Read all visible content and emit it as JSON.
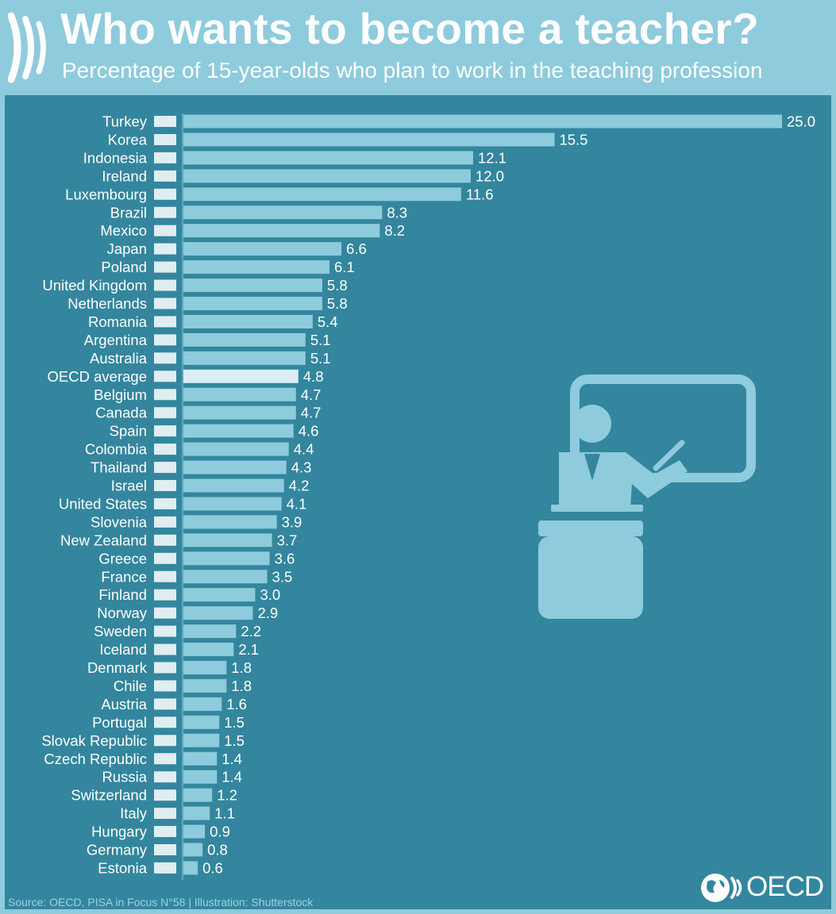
{
  "header": {
    "title": "Who wants to become a teacher?",
    "subtitle": "Percentage of 15-year-olds who plan to work in the teaching profession"
  },
  "footer": {
    "source": "Source: OECD, PISA in Focus N°58 | Illustration: Shutterstock",
    "logo_text": "OECD"
  },
  "colors": {
    "header_bg": "#8ecbdc",
    "panel_bg": "#33869e",
    "bar": "#8ecbdc",
    "highlight_bar": "#daeef4",
    "text": "#ffffff"
  },
  "chart_data": {
    "type": "bar",
    "orientation": "horizontal",
    "title": "Who wants to become a teacher?",
    "subtitle": "Percentage of 15-year-olds who plan to work in the teaching profession",
    "categories": [
      "Turkey",
      "Korea",
      "Indonesia",
      "Ireland",
      "Luxembourg",
      "Brazil",
      "Mexico",
      "Japan",
      "Poland",
      "United Kingdom",
      "Netherlands",
      "Romania",
      "Argentina",
      "Australia",
      "OECD average",
      "Belgium",
      "Canada",
      "Spain",
      "Colombia",
      "Thailand",
      "Israel",
      "United States",
      "Slovenia",
      "New Zealand",
      "Greece",
      "France",
      "Finland",
      "Norway",
      "Sweden",
      "Iceland",
      "Denmark",
      "Chile",
      "Austria",
      "Portugal",
      "Slovak Republic",
      "Czech Republic",
      "Russia",
      "Switzerland",
      "Italy",
      "Hungary",
      "Germany",
      "Estonia"
    ],
    "values": [
      25.0,
      15.5,
      12.1,
      12.0,
      11.6,
      8.3,
      8.2,
      6.6,
      6.1,
      5.8,
      5.8,
      5.4,
      5.1,
      5.1,
      4.8,
      4.7,
      4.7,
      4.6,
      4.4,
      4.3,
      4.2,
      4.1,
      3.9,
      3.7,
      3.6,
      3.5,
      3.0,
      2.9,
      2.2,
      2.1,
      1.8,
      1.8,
      1.6,
      1.5,
      1.5,
      1.4,
      1.4,
      1.2,
      1.1,
      0.9,
      0.8,
      0.6
    ],
    "value_labels": [
      "25.0",
      "15.5",
      "12.1",
      "12.0",
      "11.6",
      "8.3",
      "8.2",
      "6.6",
      "6.1",
      "5.8",
      "5.8",
      "5.4",
      "5.1",
      "5.1",
      "4.8",
      "4.7",
      "4.7",
      "4.6",
      "4.4",
      "4.3",
      "4.2",
      "4.1",
      "3.9",
      "3.7",
      "3.6",
      "3.5",
      "3.0",
      "2.9",
      "2.2",
      "2.1",
      "1.8",
      "1.8",
      "1.6",
      "1.5",
      "1.5",
      "1.4",
      "1.4",
      "1.2",
      "1.1",
      "0.9",
      "0.8",
      "0.6"
    ],
    "highlight": "OECD average",
    "xlim": [
      0,
      25.0
    ],
    "grid": false,
    "legend": "none"
  }
}
